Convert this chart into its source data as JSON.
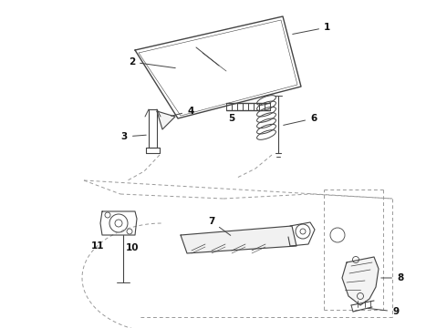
{
  "bg_color": "#ffffff",
  "line_color": "#444444",
  "label_color": "#111111",
  "dash_color": "#999999",
  "fig_w": 4.9,
  "fig_h": 3.6,
  "dpi": 100
}
